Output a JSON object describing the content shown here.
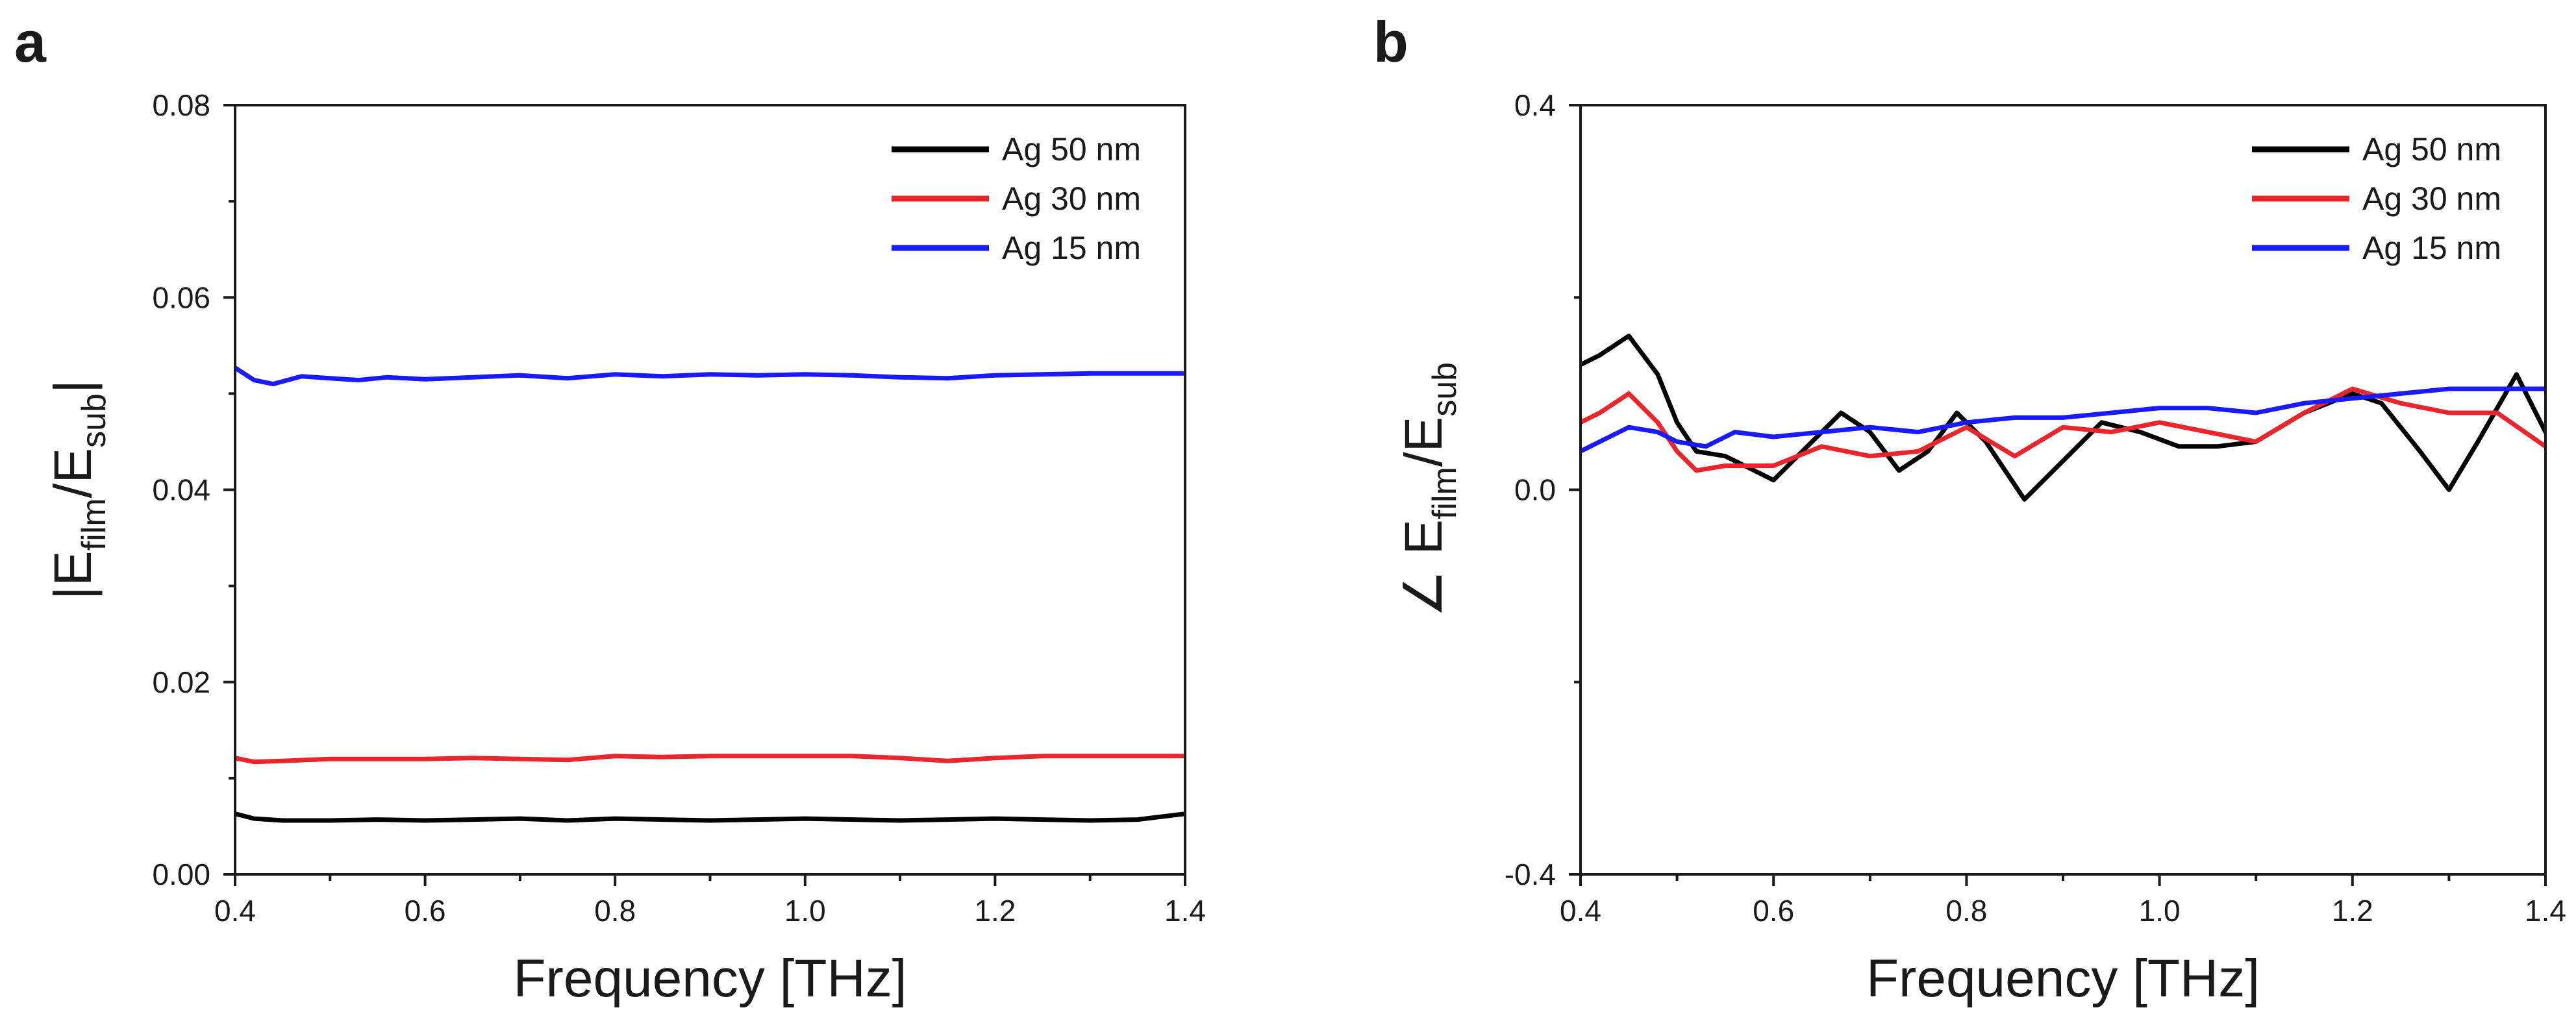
{
  "chart_data": [
    {
      "type": "line",
      "panel_label": "a",
      "title": "",
      "xlabel": "Frequency [THz]",
      "ylabel": {
        "prefix": "|E",
        "sub1": "film",
        "middle": "/E",
        "sub2": "sub",
        "suffix": "|"
      },
      "xlim": [
        0.4,
        1.4
      ],
      "ylim": [
        0.0,
        0.08
      ],
      "xticks": [
        0.4,
        0.6,
        0.8,
        1.0,
        1.2,
        1.4
      ],
      "xtick_labels": [
        "0.4",
        "0.6",
        "0.8",
        "1.0",
        "1.2",
        "1.4"
      ],
      "yticks": [
        0.0,
        0.02,
        0.04,
        0.06,
        0.08
      ],
      "ytick_labels": [
        "0.00",
        "0.02",
        "0.04",
        "0.06",
        "0.08"
      ],
      "grid": false,
      "legend_position": "top-right",
      "series": [
        {
          "name": "Ag 50 nm",
          "color": "#000000",
          "x": [
            0.4,
            0.42,
            0.45,
            0.5,
            0.55,
            0.6,
            0.65,
            0.7,
            0.75,
            0.8,
            0.85,
            0.9,
            0.95,
            1.0,
            1.05,
            1.1,
            1.15,
            1.2,
            1.25,
            1.3,
            1.35,
            1.4
          ],
          "y": [
            0.0063,
            0.0058,
            0.0056,
            0.0056,
            0.0057,
            0.0056,
            0.0057,
            0.0058,
            0.0056,
            0.0058,
            0.0057,
            0.0056,
            0.0057,
            0.0058,
            0.0057,
            0.0056,
            0.0057,
            0.0058,
            0.0057,
            0.0056,
            0.0057,
            0.0063
          ]
        },
        {
          "name": "Ag 30 nm",
          "color": "#e8262b",
          "x": [
            0.4,
            0.42,
            0.45,
            0.5,
            0.55,
            0.6,
            0.65,
            0.7,
            0.75,
            0.8,
            0.85,
            0.9,
            0.95,
            1.0,
            1.05,
            1.1,
            1.15,
            1.2,
            1.25,
            1.3,
            1.35,
            1.4
          ],
          "y": [
            0.0121,
            0.0117,
            0.0118,
            0.012,
            0.012,
            0.012,
            0.0121,
            0.012,
            0.0119,
            0.0123,
            0.0122,
            0.0123,
            0.0123,
            0.0123,
            0.0123,
            0.0121,
            0.0118,
            0.0121,
            0.0123,
            0.0123,
            0.0123,
            0.0123
          ]
        },
        {
          "name": "Ag 15 nm",
          "color": "#1a1aff",
          "x": [
            0.4,
            0.42,
            0.44,
            0.47,
            0.5,
            0.53,
            0.56,
            0.6,
            0.65,
            0.7,
            0.75,
            0.8,
            0.85,
            0.9,
            0.95,
            1.0,
            1.05,
            1.1,
            1.15,
            1.2,
            1.25,
            1.3,
            1.35,
            1.4
          ],
          "y": [
            0.0527,
            0.0514,
            0.051,
            0.0518,
            0.0516,
            0.0514,
            0.0517,
            0.0515,
            0.0517,
            0.0519,
            0.0516,
            0.052,
            0.0518,
            0.052,
            0.0519,
            0.052,
            0.0519,
            0.0517,
            0.0516,
            0.0519,
            0.052,
            0.0521,
            0.0521,
            0.0521
          ]
        }
      ]
    },
    {
      "type": "line",
      "panel_label": "b",
      "title": "",
      "xlabel": "Frequency [THz]",
      "ylabel": {
        "prefix": "∠ E",
        "sub1": "film",
        "middle": "/E",
        "sub2": "sub",
        "suffix": ""
      },
      "xlim": [
        0.4,
        1.4
      ],
      "ylim": [
        -0.4,
        0.4
      ],
      "xticks": [
        0.4,
        0.6,
        0.8,
        1.0,
        1.2,
        1.4
      ],
      "xtick_labels": [
        "0.4",
        "0.6",
        "0.8",
        "1.0",
        "1.2",
        "1.4"
      ],
      "yticks": [
        -0.4,
        0.0,
        0.4
      ],
      "ytick_labels": [
        "-0.4",
        "0.0",
        "0.4"
      ],
      "minor_yticks": [
        -0.2,
        0.2
      ],
      "grid": false,
      "legend_position": "top-right",
      "series": [
        {
          "name": "Ag 50 nm",
          "color": "#000000",
          "x": [
            0.4,
            0.42,
            0.45,
            0.48,
            0.5,
            0.52,
            0.55,
            0.58,
            0.6,
            0.64,
            0.67,
            0.7,
            0.73,
            0.76,
            0.79,
            0.82,
            0.86,
            0.9,
            0.94,
            0.98,
            1.02,
            1.06,
            1.1,
            1.15,
            1.2,
            1.23,
            1.27,
            1.3,
            1.33,
            1.37,
            1.4
          ],
          "y": [
            0.13,
            0.14,
            0.16,
            0.12,
            0.07,
            0.04,
            0.035,
            0.02,
            0.01,
            0.05,
            0.08,
            0.06,
            0.02,
            0.04,
            0.08,
            0.05,
            -0.01,
            0.03,
            0.07,
            0.06,
            0.045,
            0.045,
            0.05,
            0.08,
            0.1,
            0.09,
            0.04,
            0.0,
            0.05,
            0.12,
            0.06
          ]
        },
        {
          "name": "Ag 30 nm",
          "color": "#e8262b",
          "x": [
            0.4,
            0.42,
            0.45,
            0.48,
            0.5,
            0.52,
            0.55,
            0.6,
            0.65,
            0.7,
            0.75,
            0.8,
            0.85,
            0.9,
            0.95,
            1.0,
            1.05,
            1.1,
            1.15,
            1.2,
            1.25,
            1.3,
            1.35,
            1.4
          ],
          "y": [
            0.07,
            0.08,
            0.1,
            0.07,
            0.04,
            0.02,
            0.025,
            0.025,
            0.045,
            0.035,
            0.04,
            0.065,
            0.035,
            0.065,
            0.06,
            0.07,
            0.06,
            0.05,
            0.08,
            0.105,
            0.09,
            0.08,
            0.08,
            0.045
          ]
        },
        {
          "name": "Ag 15 nm",
          "color": "#1a1aff",
          "x": [
            0.4,
            0.42,
            0.45,
            0.48,
            0.5,
            0.53,
            0.56,
            0.6,
            0.65,
            0.7,
            0.75,
            0.8,
            0.85,
            0.9,
            0.95,
            1.0,
            1.05,
            1.1,
            1.15,
            1.2,
            1.25,
            1.3,
            1.35,
            1.4
          ],
          "y": [
            0.04,
            0.05,
            0.065,
            0.06,
            0.05,
            0.045,
            0.06,
            0.055,
            0.06,
            0.065,
            0.06,
            0.07,
            0.075,
            0.075,
            0.08,
            0.085,
            0.085,
            0.08,
            0.09,
            0.095,
            0.1,
            0.105,
            0.105,
            0.105
          ]
        }
      ]
    }
  ]
}
